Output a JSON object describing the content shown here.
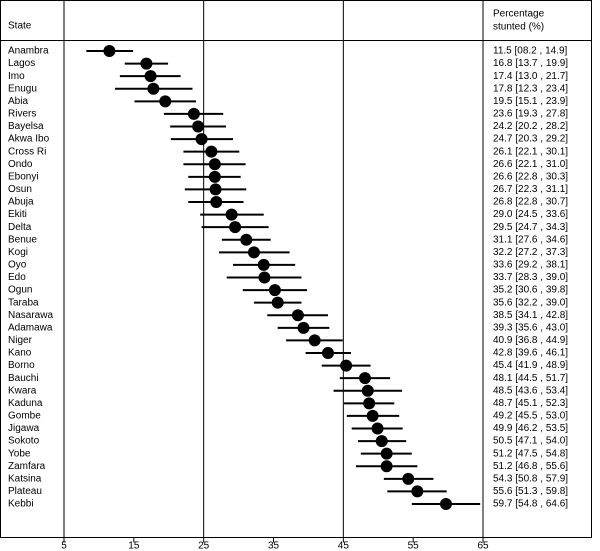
{
  "chart_data": {
    "type": "forest",
    "state_header": "State",
    "value_header": [
      "Percentage",
      "stunted (%)"
    ],
    "categories": [
      "Anambra",
      "Lagos",
      "Imo",
      "Enugu",
      "Abia",
      "Rivers",
      "Bayelsa",
      "Akwa Ibo",
      "Cross Ri",
      "Ondo",
      "Ebonyi",
      "Osun",
      "Abuja",
      "Ekiti",
      "Delta",
      "Benue",
      "Kogi",
      "Oyo",
      "Edo",
      "Ogun",
      "Taraba",
      "Nasarawa",
      "Adamawa",
      "Niger",
      "Kano",
      "Borno",
      "Bauchi",
      "Kwara",
      "Kaduna",
      "Gombe",
      "Jigawa",
      "Sokoto",
      "Yobe",
      "Zamfara",
      "Katsina",
      "Plateau",
      "Kebbi"
    ],
    "values": [
      11.5,
      16.8,
      17.4,
      17.8,
      19.5,
      23.6,
      24.2,
      24.7,
      26.1,
      26.6,
      26.6,
      26.7,
      26.8,
      29.0,
      29.5,
      31.1,
      32.2,
      33.6,
      33.7,
      35.2,
      35.6,
      38.5,
      39.3,
      40.9,
      42.8,
      45.4,
      48.1,
      48.5,
      48.7,
      49.2,
      49.9,
      50.5,
      51.2,
      51.2,
      54.3,
      55.6,
      59.7
    ],
    "lower": [
      8.2,
      13.7,
      13.0,
      12.3,
      15.1,
      19.3,
      20.2,
      20.3,
      22.1,
      22.1,
      22.8,
      22.3,
      22.8,
      24.5,
      24.7,
      27.6,
      27.2,
      29.2,
      28.3,
      30.6,
      32.2,
      34.1,
      35.6,
      36.8,
      39.6,
      41.9,
      44.5,
      43.6,
      45.1,
      45.5,
      46.2,
      47.1,
      47.5,
      46.8,
      50.8,
      51.3,
      54.8
    ],
    "upper": [
      14.9,
      19.9,
      21.7,
      23.4,
      23.9,
      27.8,
      28.2,
      29.2,
      30.1,
      31.0,
      30.3,
      31.1,
      30.7,
      33.6,
      34.3,
      34.6,
      37.3,
      38.1,
      39.0,
      39.8,
      39.0,
      42.8,
      43.0,
      44.9,
      46.1,
      48.9,
      51.7,
      53.4,
      52.3,
      53.0,
      53.5,
      54.0,
      54.8,
      55.6,
      57.9,
      59.8,
      64.6
    ],
    "value_labels": [
      "11.5 [08.2 , 14.9]",
      "16.8 [13.7 , 19.9]",
      "17.4 [13.0 , 21.7]",
      "17.8 [12.3 , 23.4]",
      "19.5 [15.1 , 23.9]",
      "23.6 [19.3 , 27.8]",
      "24.2 [20.2 , 28.2]",
      "24.7 [20.3 , 29.2]",
      "26.1 [22.1 , 30.1]",
      "26.6 [22.1 , 31.0]",
      "26.6 [22.8 , 30.3]",
      "26.7 [22.3 , 31.1]",
      "26.8 [22.8 , 30.7]",
      "29.0 [24.5 , 33.6]",
      "29.5 [24.7 , 34.3]",
      "31.1 [27.6 , 34.6]",
      "32.2 [27.2 , 37.3]",
      "33.6 [29.2 , 38.1]",
      "33.7 [28.3 , 39.0]",
      "35.2 [30.6 , 39.8]",
      "35.6 [32.2 , 39.0]",
      "38.5 [34.1 , 42.8]",
      "39.3 [35.6 , 43.0]",
      "40.9 [36.8 , 44.9]",
      "42.8 [39.6 , 46.1]",
      "45.4 [41.9 , 48.9]",
      "48.1 [44.5 , 51.7]",
      "48.5 [43.6 , 53.4]",
      "48.7 [45.1 , 52.3]",
      "49.2 [45.5 , 53.0]",
      "49.9 [46.2 , 53.5]",
      "50.5 [47.1 , 54.0]",
      "51.2 [47.5 , 54.8]",
      "51.2 [46.8 , 55.6]",
      "54.3 [50.8 , 57.9]",
      "55.6 [51.3 , 59.8]",
      "59.7 [54.8 , 64.6]"
    ],
    "color": "#000000",
    "xlim": [
      5,
      65
    ],
    "xticks": [
      5,
      15,
      25,
      35,
      45,
      55,
      65
    ],
    "xgrid": [
      25,
      45
    ]
  }
}
